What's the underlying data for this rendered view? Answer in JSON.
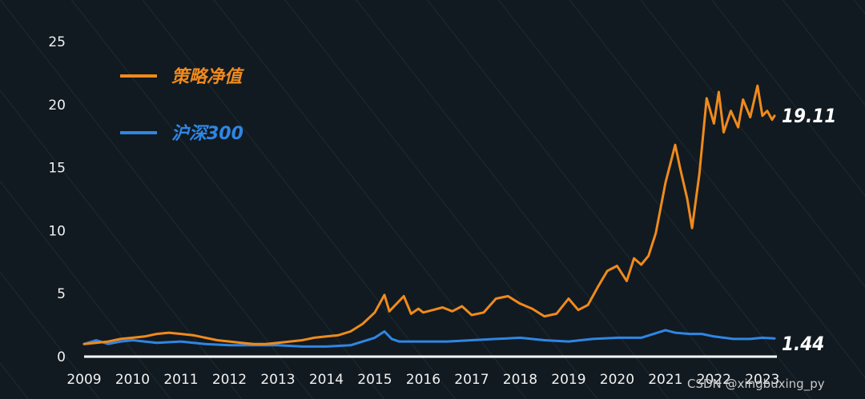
{
  "chart_data": {
    "type": "line",
    "title": "",
    "xlabel": "",
    "ylabel": "",
    "ylim": [
      0,
      25
    ],
    "xlim": [
      2009,
      2023.3
    ],
    "y_ticks": [
      "0",
      "5",
      "10",
      "15",
      "20",
      "25"
    ],
    "x_ticks": [
      "2009",
      "2010",
      "2011",
      "2012",
      "2013",
      "2014",
      "2015",
      "2016",
      "2017",
      "2018",
      "2019",
      "2020",
      "2021",
      "2022",
      "2023"
    ],
    "grid": false,
    "legend_position": "top-left",
    "series": [
      {
        "name": "策略净值",
        "color": "#f08a1c",
        "end_label": "19.11",
        "x": [
          2009.0,
          2009.25,
          2009.5,
          2009.75,
          2010.0,
          2010.25,
          2010.5,
          2010.75,
          2011.0,
          2011.25,
          2011.5,
          2011.75,
          2012.0,
          2012.25,
          2012.5,
          2012.75,
          2013.0,
          2013.25,
          2013.5,
          2013.75,
          2014.0,
          2014.25,
          2014.5,
          2014.75,
          2015.0,
          2015.2,
          2015.3,
          2015.45,
          2015.6,
          2015.75,
          2015.9,
          2016.0,
          2016.2,
          2016.4,
          2016.6,
          2016.8,
          2017.0,
          2017.25,
          2017.5,
          2017.75,
          2018.0,
          2018.25,
          2018.5,
          2018.75,
          2019.0,
          2019.2,
          2019.4,
          2019.6,
          2019.8,
          2020.0,
          2020.2,
          2020.35,
          2020.5,
          2020.65,
          2020.8,
          2021.0,
          2021.2,
          2021.3,
          2021.45,
          2021.55,
          2021.7,
          2021.85,
          2022.0,
          2022.1,
          2022.2,
          2022.35,
          2022.5,
          2022.6,
          2022.75,
          2022.9,
          2023.0,
          2023.1,
          2023.2,
          2023.25
        ],
        "values": [
          1.0,
          1.1,
          1.2,
          1.4,
          1.5,
          1.6,
          1.8,
          1.9,
          1.8,
          1.7,
          1.5,
          1.3,
          1.2,
          1.1,
          1.0,
          1.0,
          1.1,
          1.2,
          1.3,
          1.5,
          1.6,
          1.7,
          2.0,
          2.6,
          3.5,
          4.9,
          3.6,
          4.2,
          4.8,
          3.4,
          3.8,
          3.5,
          3.7,
          3.9,
          3.6,
          4.0,
          3.3,
          3.5,
          4.6,
          4.8,
          4.2,
          3.8,
          3.2,
          3.4,
          4.6,
          3.7,
          4.1,
          5.5,
          6.8,
          7.2,
          6.0,
          7.8,
          7.3,
          8.0,
          9.8,
          13.8,
          16.8,
          15.0,
          12.5,
          10.2,
          14.5,
          20.5,
          18.5,
          21.0,
          17.8,
          19.5,
          18.2,
          20.4,
          19.0,
          21.5,
          19.11,
          19.5,
          18.8,
          19.11
        ]
      },
      {
        "name": "沪深300",
        "color": "#2f86e3",
        "end_label": "1.44",
        "x": [
          2009.0,
          2009.25,
          2009.5,
          2009.75,
          2010.0,
          2010.5,
          2011.0,
          2011.5,
          2012.0,
          2012.5,
          2013.0,
          2013.5,
          2014.0,
          2014.5,
          2015.0,
          2015.2,
          2015.35,
          2015.5,
          2016.0,
          2016.5,
          2017.0,
          2017.5,
          2018.0,
          2018.5,
          2019.0,
          2019.5,
          2020.0,
          2020.5,
          2021.0,
          2021.2,
          2021.5,
          2021.75,
          2022.0,
          2022.4,
          2022.75,
          2023.0,
          2023.25
        ],
        "values": [
          1.0,
          1.3,
          1.0,
          1.2,
          1.3,
          1.1,
          1.2,
          1.0,
          0.9,
          0.9,
          0.9,
          0.8,
          0.8,
          0.9,
          1.5,
          2.0,
          1.4,
          1.2,
          1.2,
          1.2,
          1.3,
          1.4,
          1.5,
          1.3,
          1.2,
          1.4,
          1.5,
          1.5,
          2.1,
          1.9,
          1.8,
          1.8,
          1.6,
          1.4,
          1.4,
          1.5,
          1.44
        ]
      }
    ],
    "annotations": [
      "19.11",
      "1.44"
    ]
  },
  "watermark": "CSDN @xingbuxing_py"
}
